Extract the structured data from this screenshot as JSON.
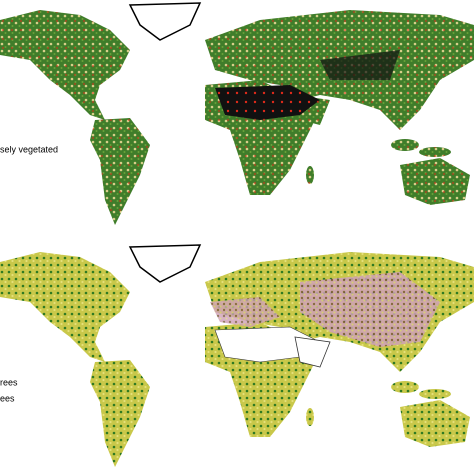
{
  "maps": [
    {
      "legend": [
        "sely vegetated"
      ]
    },
    {
      "legend": [
        "rees",
        "ees"
      ]
    }
  ]
}
